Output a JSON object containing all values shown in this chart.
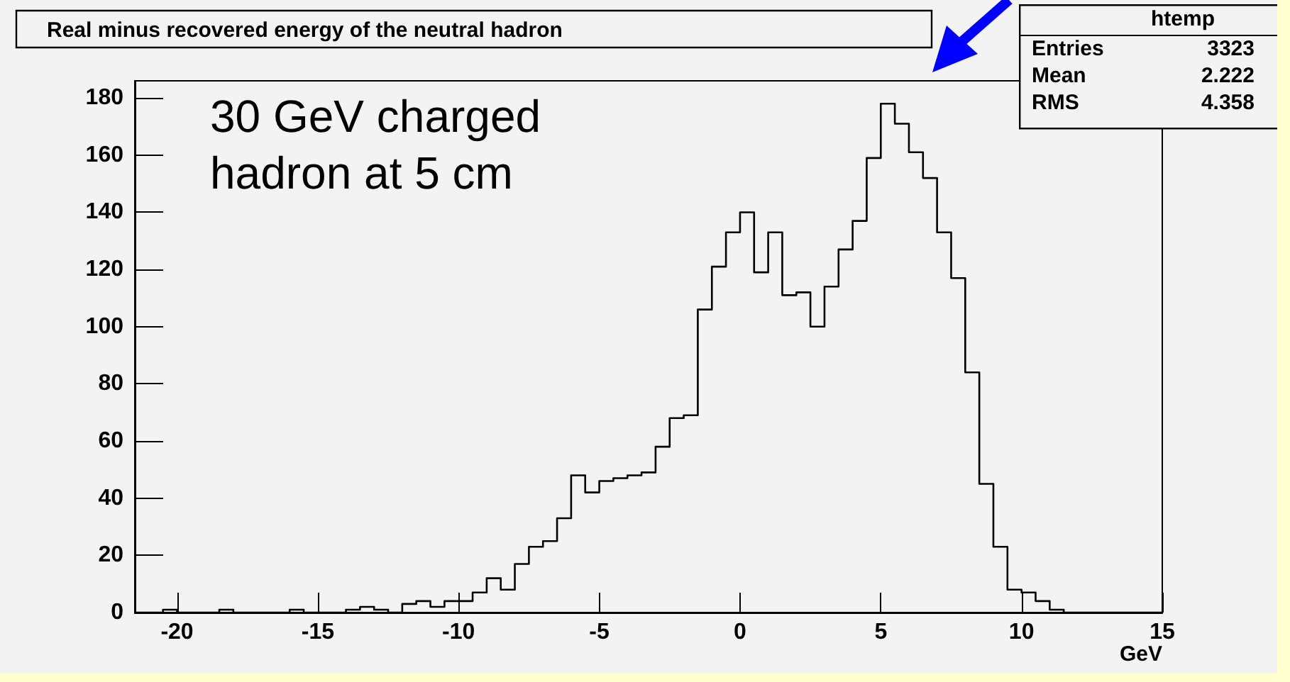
{
  "chart_data": {
    "type": "histogram",
    "title": "Real minus recovered energy of the neutral hadron",
    "xlabel": "GeV",
    "bins": [
      -21.5,
      -21,
      -20.5,
      -20,
      -19.5,
      -19,
      -18.5,
      -18,
      -17.5,
      -17,
      -16.5,
      -16,
      -15.5,
      -15,
      -14.5,
      -14,
      -13.5,
      -13,
      -12.5,
      -12,
      -11.5,
      -11,
      -10.5,
      -10,
      -9.5,
      -9,
      -8.5,
      -8,
      -7.5,
      -7,
      -6.5,
      -6,
      -5.5,
      -5,
      -4.5,
      -4,
      -3.5,
      -3,
      -2.5,
      -2,
      -1.5,
      -1,
      -0.5,
      0,
      0.5,
      1,
      1.5,
      2,
      2.5,
      3,
      3.5,
      4,
      4.5,
      5,
      5.5,
      6,
      6.5,
      7,
      7.5,
      8,
      8.5,
      9,
      9.5,
      10,
      10.5,
      11,
      11.5,
      12,
      12.5,
      13,
      13.5,
      14,
      14.5,
      15
    ],
    "values": [
      0,
      0,
      1,
      0,
      0,
      0,
      1,
      0,
      0,
      0,
      0,
      1,
      0,
      0,
      0,
      1,
      2,
      1,
      0,
      3,
      4,
      2,
      4,
      4,
      7,
      12,
      8,
      17,
      23,
      25,
      33,
      48,
      42,
      46,
      47,
      48,
      49,
      58,
      68,
      69,
      106,
      121,
      133,
      140,
      119,
      133,
      111,
      112,
      100,
      114,
      127,
      137,
      159,
      178,
      171,
      161,
      152,
      133,
      117,
      84,
      45,
      23,
      8,
      7,
      4,
      1,
      0,
      0,
      0,
      0,
      0,
      0,
      0
    ],
    "color": "#000000",
    "xlim": [
      -21.5,
      15
    ],
    "xticks": [
      -20,
      -15,
      -10,
      -5,
      0,
      5,
      10,
      15
    ],
    "ylim": [
      0,
      186
    ],
    "yticks": [
      0,
      20,
      40,
      60,
      80,
      100,
      120,
      140,
      160,
      180
    ],
    "grid": false,
    "annotations": [
      "30 GeV charged\nhadron at 5 cm",
      "htemp",
      "Entries",
      "3323",
      "Mean",
      "2.222",
      "RMS",
      "4.358"
    ]
  }
}
